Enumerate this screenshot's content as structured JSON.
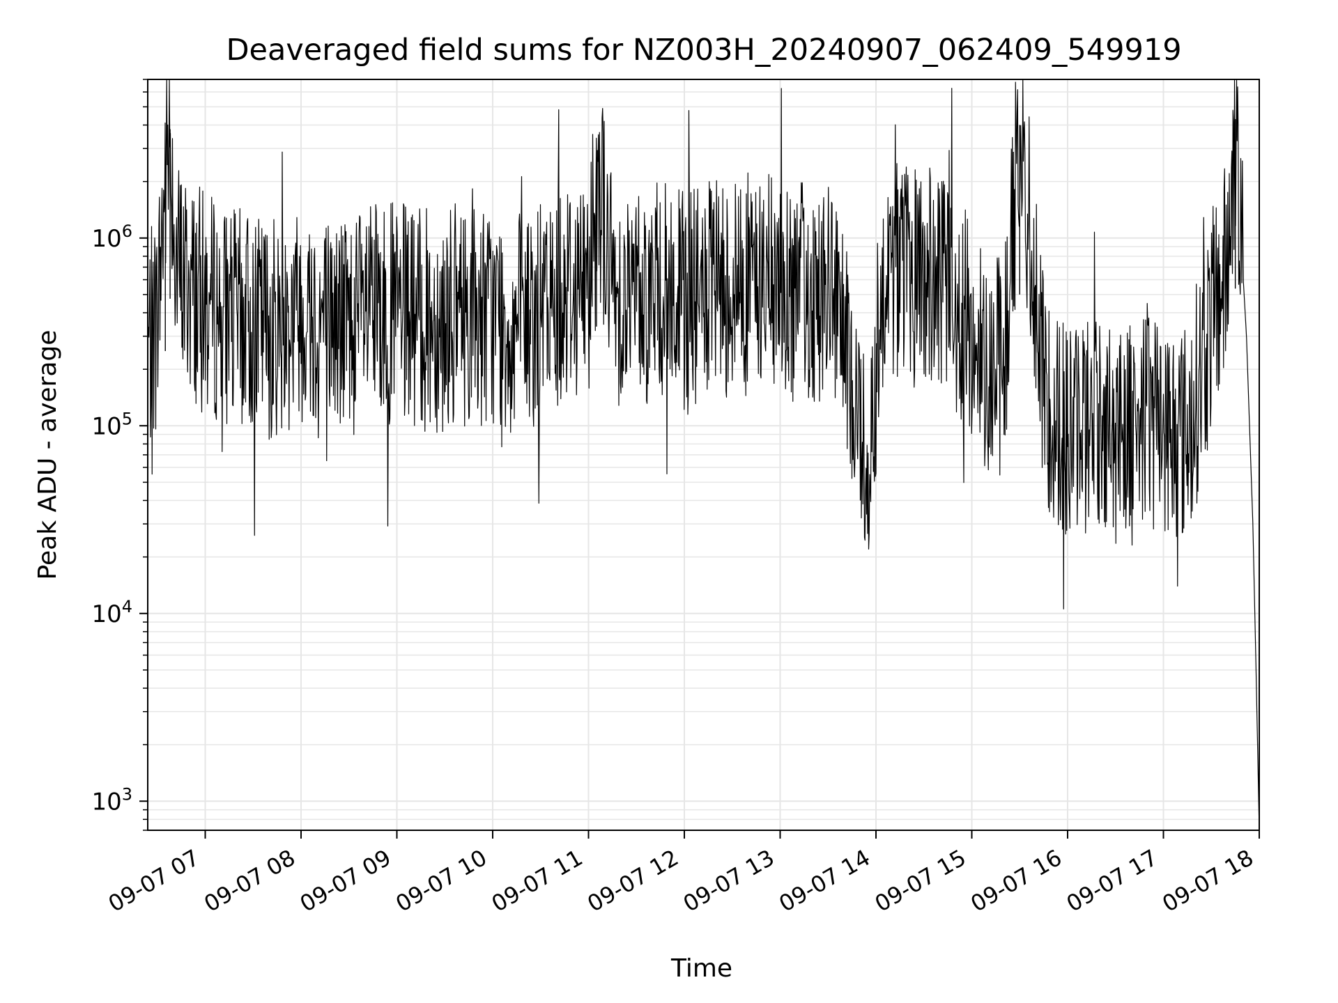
{
  "chart_data": {
    "type": "line",
    "title": "Deaveraged field sums for NZ003H_20240907_062409_549919",
    "xlabel": "Time",
    "ylabel": "Peak ADU - average",
    "y_scale": "log",
    "grid": true,
    "line_color": "#000000",
    "grid_color": "#e6e6e6",
    "xlim": [
      "2024-09-07 06:24",
      "2024-09-07 18:00"
    ],
    "ylim": [
      700,
      7000000
    ],
    "x_ticks": [
      "2024-09-07 07:00",
      "2024-09-07 08:00",
      "2024-09-07 09:00",
      "2024-09-07 10:00",
      "2024-09-07 11:00",
      "2024-09-07 12:00",
      "2024-09-07 13:00",
      "2024-09-07 14:00",
      "2024-09-07 15:00",
      "2024-09-07 16:00",
      "2024-09-07 17:00",
      "2024-09-07 18:00"
    ],
    "x_tick_labels": [
      "09-07 07",
      "09-07 08",
      "09-07 09",
      "09-07 10",
      "09-07 11",
      "09-07 12",
      "09-07 13",
      "09-07 14",
      "09-07 15",
      "09-07 16",
      "09-07 17",
      "09-07 18"
    ],
    "y_ticks": [
      1000,
      10000,
      100000,
      1000000
    ],
    "y_tick_labels": [
      {
        "base": "10",
        "exp": "3"
      },
      {
        "base": "10",
        "exp": "4"
      },
      {
        "base": "10",
        "exp": "5"
      },
      {
        "base": "10",
        "exp": "6"
      }
    ],
    "series": [
      {
        "points": [
          [
            "2024-09-07 06:24",
            250000
          ],
          [
            "2024-09-07 06:30",
            380000
          ],
          [
            "2024-09-07 06:35",
            2000000
          ],
          [
            "2024-09-07 06:38",
            3800000
          ],
          [
            "2024-09-07 06:42",
            700000
          ],
          [
            "2024-09-07 06:50",
            550000
          ],
          [
            "2024-09-07 07:00",
            450000
          ],
          [
            "2024-09-07 07:15",
            380000
          ],
          [
            "2024-09-07 07:30",
            350000
          ],
          [
            "2024-09-07 07:45",
            330000
          ],
          [
            "2024-09-07 08:00",
            420000
          ],
          [
            "2024-09-07 08:15",
            360000
          ],
          [
            "2024-09-07 08:30",
            350000
          ],
          [
            "2024-09-07 08:45",
            380000
          ],
          [
            "2024-09-07 09:00",
            400000
          ],
          [
            "2024-09-07 09:15",
            360000
          ],
          [
            "2024-09-07 09:30",
            370000
          ],
          [
            "2024-09-07 09:45",
            400000
          ],
          [
            "2024-09-07 10:00",
            380000
          ],
          [
            "2024-09-07 10:15",
            340000
          ],
          [
            "2024-09-07 10:30",
            380000
          ],
          [
            "2024-09-07 10:45",
            550000
          ],
          [
            "2024-09-07 11:00",
            560000
          ],
          [
            "2024-09-07 11:05",
            2700000
          ],
          [
            "2024-09-07 11:15",
            520000
          ],
          [
            "2024-09-07 11:30",
            480000
          ],
          [
            "2024-09-07 11:45",
            520000
          ],
          [
            "2024-09-07 12:00",
            450000
          ],
          [
            "2024-09-07 12:15",
            500000
          ],
          [
            "2024-09-07 12:30",
            560000
          ],
          [
            "2024-09-07 12:45",
            580000
          ],
          [
            "2024-09-07 13:00",
            540000
          ],
          [
            "2024-09-07 13:15",
            520000
          ],
          [
            "2024-09-07 13:30",
            500000
          ],
          [
            "2024-09-07 13:40",
            250000
          ],
          [
            "2024-09-07 13:55",
            60000
          ],
          [
            "2024-09-07 14:05",
            700000
          ],
          [
            "2024-09-07 14:20",
            650000
          ],
          [
            "2024-09-07 14:35",
            600000
          ],
          [
            "2024-09-07 14:50",
            450000
          ],
          [
            "2024-09-07 15:05",
            250000
          ],
          [
            "2024-09-07 15:20",
            200000
          ],
          [
            "2024-09-07 15:30",
            4000000
          ],
          [
            "2024-09-07 15:45",
            150000
          ],
          [
            "2024-09-07 16:00",
            90000
          ],
          [
            "2024-09-07 16:15",
            110000
          ],
          [
            "2024-09-07 16:30",
            100000
          ],
          [
            "2024-09-07 16:45",
            120000
          ],
          [
            "2024-09-07 17:00",
            100000
          ],
          [
            "2024-09-07 17:15",
            90000
          ],
          [
            "2024-09-07 17:30",
            350000
          ],
          [
            "2024-09-07 17:40",
            700000
          ],
          [
            "2024-09-07 17:45",
            4300000
          ],
          [
            "2024-09-07 17:48",
            1200000
          ],
          [
            "2024-09-07 17:52",
            300000
          ],
          [
            "2024-09-07 17:56",
            30000
          ],
          [
            "2024-09-07 17:58",
            5000
          ],
          [
            "2024-09-07 18:00",
            700
          ]
        ]
      }
    ]
  }
}
